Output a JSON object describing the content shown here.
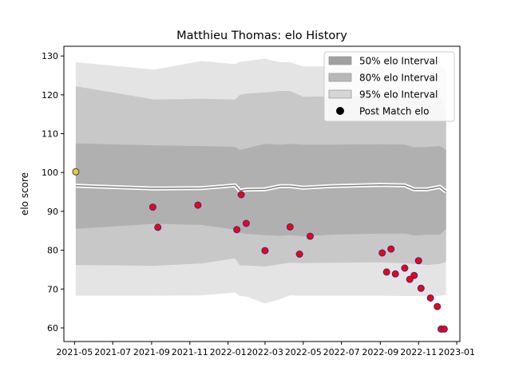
{
  "chart_data": {
    "type": "line",
    "title": "Matthieu Thomas: elo History",
    "xlabel": "",
    "ylabel": "elo score",
    "xlim": [
      "2021-04-14",
      "2023-01-06"
    ],
    "ylim": [
      56.5,
      132.5
    ],
    "x_ticks": [
      "2021-05",
      "2021-07",
      "2021-09",
      "2021-11",
      "2022-01",
      "2022-03",
      "2022-05",
      "2022-07",
      "2022-09",
      "2022-11",
      "2023-01"
    ],
    "y_ticks": [
      60,
      70,
      80,
      90,
      100,
      110,
      120,
      130
    ],
    "legend_position": "top-right",
    "legend": [
      {
        "label": "50% elo Interval",
        "kind": "band50"
      },
      {
        "label": "80% elo Interval",
        "kind": "band80"
      },
      {
        "label": "95% elo Interval",
        "kind": "band95"
      },
      {
        "label": "Post Match elo",
        "kind": "marker"
      }
    ],
    "colors": {
      "band50": "#a0a0a0",
      "band80": "#b8b8b8",
      "band95": "#d6d6d6",
      "mean_line": "#808080",
      "marker_fill": "#ff0000",
      "marker_edge": "#2a2aa0",
      "initial_marker_fill": "#e8c840",
      "initial_marker_edge": "#404040"
    },
    "bands": {
      "dates": [
        "2021-05-03",
        "2021-09-05",
        "2021-11-20",
        "2022-01-12",
        "2022-01-20",
        "2022-01-30",
        "2022-03-01",
        "2022-03-25",
        "2022-04-10",
        "2022-05-01",
        "2022-06-15",
        "2022-09-01",
        "2022-10-10",
        "2022-10-25",
        "2022-11-15",
        "2022-12-05",
        "2022-12-15"
      ],
      "mean": [
        96.6,
        95.9,
        96.0,
        96.7,
        95.3,
        95.6,
        95.7,
        96.5,
        96.5,
        96.1,
        96.5,
        96.8,
        96.7,
        95.7,
        95.7,
        96.3,
        95.1
      ],
      "p50_lo": [
        85.5,
        86.8,
        86.5,
        85.3,
        84.5,
        84.2,
        83.9,
        83.7,
        83.9,
        83.6,
        84.0,
        84.3,
        84.3,
        83.8,
        84.0,
        84.0,
        85.5
      ],
      "p50_hi": [
        107.5,
        107.0,
        106.8,
        106.6,
        105.8,
        106.2,
        107.4,
        107.2,
        107.4,
        107.2,
        107.2,
        107.3,
        107.2,
        106.5,
        106.6,
        106.8,
        105.8
      ],
      "p80_lo": [
        76.2,
        76.0,
        76.6,
        77.9,
        76.1,
        76.1,
        75.8,
        76.4,
        76.8,
        76.7,
        76.8,
        76.9,
        76.7,
        76.5,
        76.2,
        76.5,
        77.0
      ],
      "p80_hi": [
        122.2,
        118.8,
        119.0,
        118.8,
        120.0,
        120.3,
        120.6,
        121.0,
        121.0,
        119.5,
        119.6,
        119.7,
        119.7,
        119.5,
        119.5,
        119.9,
        116.2
      ],
      "p95_lo": [
        68.3,
        68.3,
        68.4,
        69.1,
        68.2,
        68.1,
        66.3,
        67.4,
        68.4,
        68.3,
        68.3,
        68.3,
        68.2,
        68.2,
        68.2,
        68.3,
        68.5
      ],
      "p95_hi": [
        128.4,
        126.5,
        128.7,
        127.9,
        128.5,
        128.7,
        129.3,
        128.4,
        128.4,
        127.3,
        127.3,
        127.7,
        127.7,
        127.5,
        127.5,
        127.5,
        126.4
      ]
    },
    "points": {
      "x": [
        "2021-05-03",
        "2021-09-03",
        "2021-09-11",
        "2021-11-14",
        "2022-01-15",
        "2022-01-22",
        "2022-01-30",
        "2022-03-01",
        "2022-04-10",
        "2022-04-25",
        "2022-05-12",
        "2022-09-04",
        "2022-09-11",
        "2022-09-18",
        "2022-09-25",
        "2022-10-10",
        "2022-10-18",
        "2022-10-25",
        "2022-11-01",
        "2022-11-05",
        "2022-11-20",
        "2022-12-01",
        "2022-12-07",
        "2022-12-12"
      ],
      "y": [
        100.2,
        91.1,
        85.9,
        91.6,
        85.3,
        94.3,
        86.9,
        79.9,
        86.0,
        79.0,
        83.6,
        79.3,
        74.4,
        80.3,
        73.9,
        75.4,
        72.5,
        73.5,
        77.3,
        70.2,
        67.7,
        65.5,
        59.7,
        59.7
      ],
      "initial_index": 0
    }
  }
}
